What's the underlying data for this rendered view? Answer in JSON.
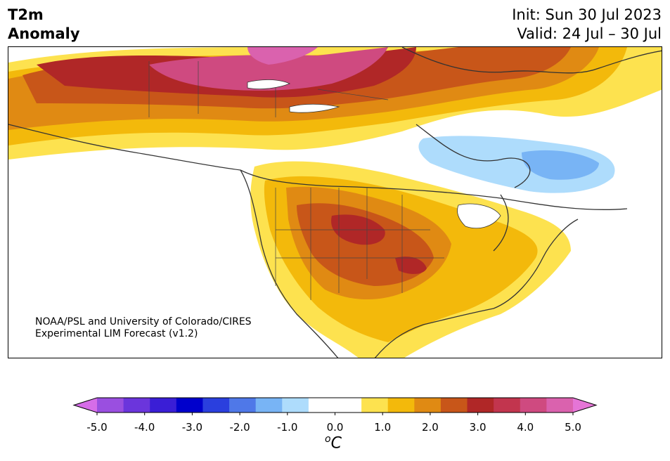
{
  "header": {
    "title_line1": "T2m",
    "title_line2": "Anomaly",
    "init": "Init: Sun 30 Jul 2023",
    "valid": "Valid: 24 Jul – 30 Jul"
  },
  "map": {
    "credit_line1": "NOAA/PSL and University of Colorado/CIRES",
    "credit_line2": "Experimental LIM Forecast (v1.2)"
  },
  "colorbar": {
    "colors": [
      "#d66de8",
      "#9a4fe0",
      "#6b35dc",
      "#3a1ed6",
      "#0000cc",
      "#2a3fde",
      "#4f78e8",
      "#78b4f5",
      "#aedcfc",
      "#ffffff",
      "#ffffff",
      "#fde24f",
      "#f3b90b",
      "#e08a13",
      "#c85619",
      "#b02727",
      "#c2354e",
      "#cf4a80",
      "#da62ae",
      "#e575d6"
    ],
    "ticks": [
      "-5.0",
      "-4.0",
      "-3.0",
      "-2.0",
      "-1.0",
      "0.0",
      "1.0",
      "2.0",
      "3.0",
      "4.0",
      "5.0"
    ],
    "unit_o": "o",
    "unit_c": "C"
  }
}
